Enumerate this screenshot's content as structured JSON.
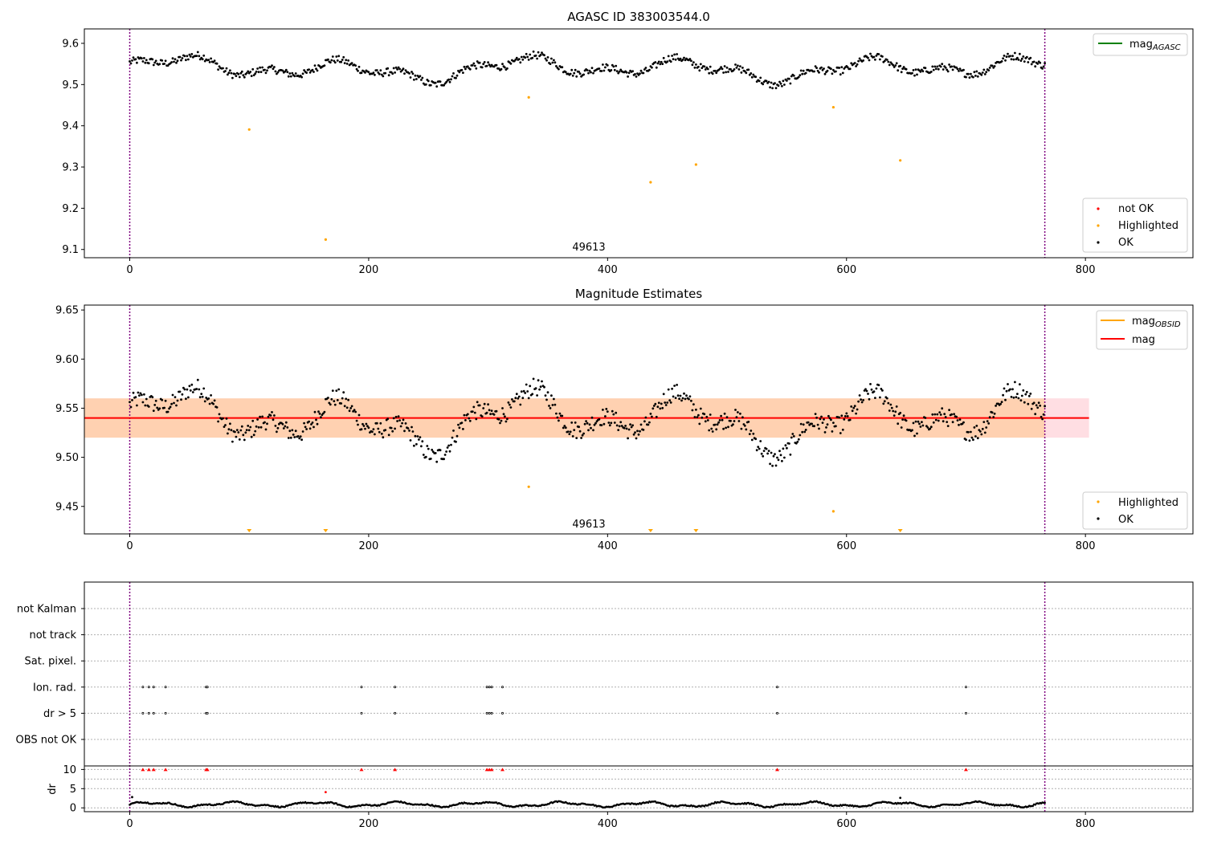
{
  "chart_data": [
    {
      "type": "scatter",
      "title": "AGASC ID 383003544.0",
      "xlim": [
        -38,
        890
      ],
      "ylim": [
        9.08,
        9.635
      ],
      "xticks": [
        0,
        200,
        400,
        600,
        800
      ],
      "yticks": [
        9.1,
        9.2,
        9.3,
        9.4,
        9.5,
        9.6
      ],
      "vlines": [
        0,
        766
      ],
      "annotation": {
        "text": "49613",
        "x": 383,
        "y": 9.1
      },
      "line_legend": [
        {
          "label": "mag",
          "sub": "AGASC",
          "color": "#008000"
        }
      ],
      "legend": [
        {
          "label": "not OK",
          "color": "#ff0000"
        },
        {
          "label": "Highlighted",
          "color": "#ffa500"
        },
        {
          "label": "OK",
          "color": "#000000"
        }
      ],
      "base_level": 9.538,
      "base_amp": 1.0,
      "ok_range": [
        0,
        766
      ],
      "highlighted": [
        [
          100,
          9.391
        ],
        [
          164,
          9.124
        ],
        [
          334,
          9.469
        ],
        [
          436,
          9.263
        ],
        [
          474,
          9.306
        ],
        [
          589,
          9.445
        ],
        [
          645,
          9.316
        ]
      ],
      "grid": false
    },
    {
      "type": "scatter",
      "title": "Magnitude Estimates",
      "xlim": [
        -38,
        890
      ],
      "ylim": [
        9.422,
        9.655
      ],
      "xticks": [
        0,
        200,
        400,
        600,
        800
      ],
      "yticks": [
        9.45,
        9.5,
        9.55,
        9.6,
        9.65
      ],
      "vlines": [
        0,
        766
      ],
      "annotation": {
        "text": "49613",
        "x": 383,
        "y": 9.432
      },
      "line_legend": [
        {
          "label": "mag",
          "sub": "OBSID",
          "color": "#ffa500"
        },
        {
          "label": "mag",
          "sub": "",
          "color": "#ff0000"
        }
      ],
      "legend": [
        {
          "label": "Highlighted",
          "color": "#ffa500"
        },
        {
          "label": "OK",
          "color": "#000000"
        }
      ],
      "mag_line": 9.54,
      "band": [
        9.52,
        9.56
      ],
      "band_x": [
        -38,
        803
      ],
      "base_level": 9.538,
      "base_amp": 1.0,
      "ok_range": [
        0,
        766
      ],
      "highlighted": [
        [
          334,
          9.47
        ],
        [
          589,
          9.445
        ]
      ],
      "clipped_markers": [
        100,
        164,
        436,
        474,
        645
      ],
      "grid": false
    },
    {
      "type": "scatter",
      "title": "",
      "xlim": [
        -38,
        890
      ],
      "xticks": [
        0,
        200,
        400,
        600,
        800
      ],
      "vlines": [
        0,
        766
      ],
      "flag_categories": [
        "OBS not OK",
        "dr > 5",
        "Ion. rad.",
        "Sat. pixel.",
        "not track",
        "not Kalman"
      ],
      "flag_x": [
        11,
        16,
        20,
        30,
        64,
        65,
        194,
        222,
        299,
        301,
        303,
        312,
        542,
        700
      ],
      "flagged_rows": [
        "dr > 5",
        "Ion. rad."
      ],
      "dr_ylabel": "dr",
      "dr_ylim": [
        -1,
        10.5
      ],
      "dr_yticks": [
        0,
        5,
        10
      ],
      "dr_base_range": [
        0,
        766
      ],
      "dr_outliers": [
        [
          164,
          4.1
        ],
        [
          645,
          2.6
        ],
        [
          2,
          2.8
        ]
      ],
      "dr_capped_x": [
        11,
        16,
        20,
        30,
        64,
        65,
        194,
        222,
        299,
        301,
        303,
        312,
        542,
        700
      ],
      "dr_cap": 10,
      "grid": true
    }
  ]
}
